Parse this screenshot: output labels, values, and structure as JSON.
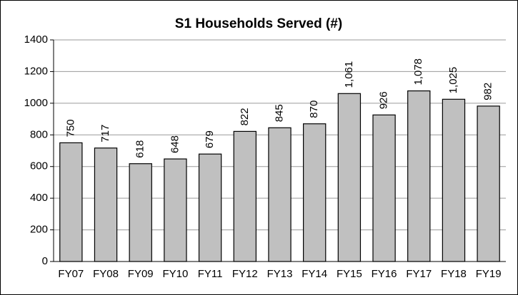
{
  "chart_data": {
    "type": "bar",
    "title": "S1 Households Served (#)",
    "categories": [
      "FY07",
      "FY08",
      "FY09",
      "FY10",
      "FY11",
      "FY12",
      "FY13",
      "FY14",
      "FY15",
      "FY16",
      "FY17",
      "FY18",
      "FY19"
    ],
    "values": [
      750,
      717,
      618,
      648,
      679,
      822,
      845,
      870,
      1061,
      926,
      1078,
      1025,
      982
    ],
    "value_labels": [
      "750",
      "717",
      "618",
      "648",
      "679",
      "822",
      "845",
      "870",
      "1,061",
      "926",
      "1,078",
      "1,025",
      "982"
    ],
    "color": "#c0c0c0",
    "ylim": [
      0,
      1400
    ],
    "yticks": [
      0,
      200,
      400,
      600,
      800,
      1000,
      1200,
      1400
    ],
    "grid": true
  }
}
